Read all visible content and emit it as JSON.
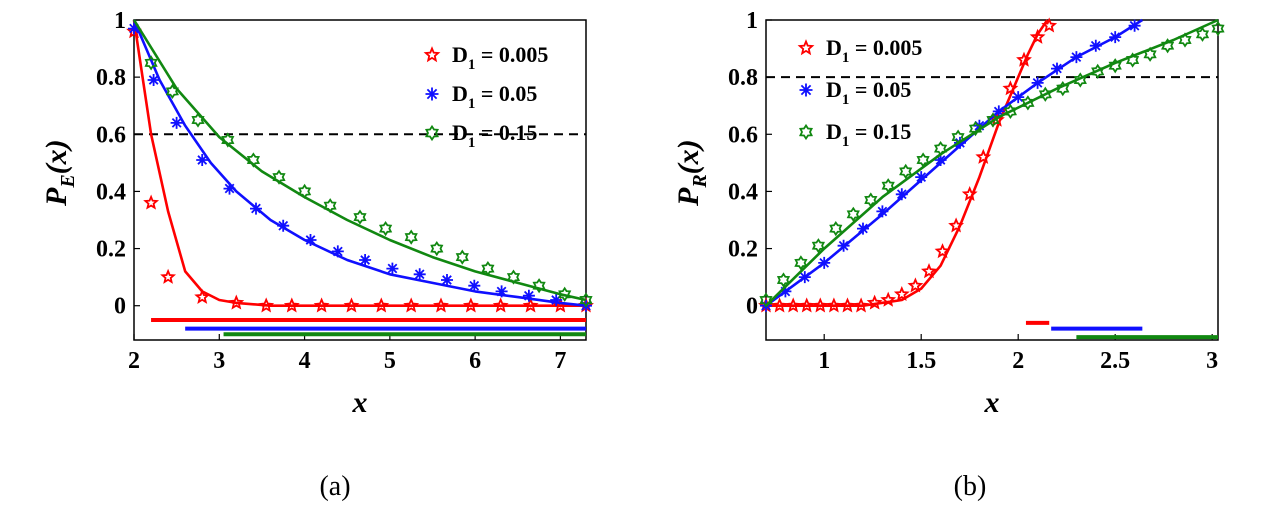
{
  "colors": {
    "red": "#ff0000",
    "blue": "#1010ff",
    "green": "#118811",
    "threshold": "#000000"
  },
  "panels": [
    {
      "caption": "(a)",
      "ylabel_main": "P",
      "ylabel_sub": "E",
      "ylabel_tail": "(x)",
      "xlabel": "x",
      "legend": [
        {
          "prefix": "D",
          "sub": "1",
          "value": " = 0.005",
          "color": "red",
          "marker": "pentagram"
        },
        {
          "prefix": "D",
          "sub": "1",
          "value": " = 0.05",
          "color": "blue",
          "marker": "asterisk"
        },
        {
          "prefix": "D",
          "sub": "1",
          "value": " = 0.15",
          "color": "green",
          "marker": "hexagram"
        }
      ]
    },
    {
      "caption": "(b)",
      "ylabel_main": "P",
      "ylabel_sub": "R",
      "ylabel_tail": "(x)",
      "xlabel": "x",
      "legend": [
        {
          "prefix": "D",
          "sub": "1",
          "value": " = 0.005",
          "color": "red",
          "marker": "pentagram"
        },
        {
          "prefix": "D",
          "sub": "1",
          "value": " = 0.05",
          "color": "blue",
          "marker": "asterisk"
        },
        {
          "prefix": "D",
          "sub": "1",
          "value": " = 0.15",
          "color": "green",
          "marker": "hexagram"
        }
      ]
    }
  ],
  "chart_data": [
    {
      "type": "line",
      "xlabel": "x",
      "ylabel": "P_E(x)",
      "xlim": [
        2,
        7.3
      ],
      "ylim": [
        -0.12,
        1
      ],
      "xticks": [
        "2",
        "3",
        "4",
        "5",
        "6",
        "7"
      ],
      "yticks": [
        "0",
        "0.2",
        "0.4",
        "0.6",
        "0.8",
        "1"
      ],
      "xtick_values": [
        2,
        3,
        4,
        5,
        6,
        7
      ],
      "ytick_values": [
        0,
        0.2,
        0.4,
        0.6,
        0.8,
        1
      ],
      "grid": false,
      "legend_position": "top-right",
      "threshold": 0.6,
      "series": [
        {
          "name": "D1 = 0.005",
          "color": "red",
          "marker": "pentagram",
          "x": [
            2.0,
            2.2,
            2.4,
            2.6,
            2.8,
            3.0,
            3.2,
            3.4,
            3.6,
            3.8,
            4.0,
            4.4,
            4.8,
            5.2,
            5.6,
            6.0,
            6.4,
            6.8,
            7.3
          ],
          "y": [
            1.0,
            0.6,
            0.33,
            0.12,
            0.05,
            0.02,
            0.01,
            0.005,
            0.0,
            0.0,
            0.0,
            0.0,
            0.0,
            0.0,
            0.0,
            0.0,
            0.0,
            0.0,
            0.0
          ],
          "points_x": [
            2.0,
            2.2,
            2.4,
            2.8,
            3.2,
            3.55,
            3.85,
            4.2,
            4.55,
            4.9,
            5.25,
            5.6,
            5.95,
            6.3,
            6.65,
            7.0,
            7.3
          ],
          "points_y": [
            0.96,
            0.36,
            0.1,
            0.03,
            0.01,
            0.0,
            0.0,
            0.0,
            0.0,
            0.0,
            0.0,
            0.0,
            0.0,
            0.0,
            0.0,
            0.0,
            0.0
          ],
          "bar": {
            "from": 2.2,
            "to": 7.3,
            "y": -0.05
          }
        },
        {
          "name": "D1 = 0.05",
          "color": "blue",
          "marker": "asterisk",
          "x": [
            2.0,
            2.3,
            2.6,
            2.9,
            3.2,
            3.6,
            4.0,
            4.5,
            5.0,
            5.5,
            6.0,
            6.5,
            7.0,
            7.3
          ],
          "y": [
            1.0,
            0.79,
            0.63,
            0.5,
            0.4,
            0.3,
            0.23,
            0.16,
            0.11,
            0.08,
            0.05,
            0.03,
            0.01,
            0.0
          ],
          "points_x": [
            2.0,
            2.23,
            2.5,
            2.8,
            3.12,
            3.43,
            3.75,
            4.07,
            4.39,
            4.71,
            5.03,
            5.35,
            5.67,
            5.99,
            6.31,
            6.63,
            6.95,
            7.3
          ],
          "points_y": [
            0.97,
            0.79,
            0.64,
            0.51,
            0.41,
            0.34,
            0.28,
            0.23,
            0.19,
            0.16,
            0.13,
            0.11,
            0.09,
            0.07,
            0.05,
            0.035,
            0.02,
            0.0
          ],
          "bar": {
            "from": 2.6,
            "to": 7.3,
            "y": -0.08
          }
        },
        {
          "name": "D1 = 0.15",
          "color": "green",
          "marker": "hexagram",
          "x": [
            2.0,
            2.5,
            3.0,
            3.5,
            4.0,
            4.5,
            5.0,
            5.5,
            6.0,
            6.5,
            7.0,
            7.3
          ],
          "y": [
            1.0,
            0.76,
            0.59,
            0.47,
            0.38,
            0.3,
            0.23,
            0.17,
            0.12,
            0.08,
            0.04,
            0.02
          ],
          "points_x": [
            2.2,
            2.45,
            2.75,
            3.1,
            3.4,
            3.7,
            4.0,
            4.3,
            4.65,
            4.95,
            5.25,
            5.55,
            5.85,
            6.15,
            6.45,
            6.75,
            7.05,
            7.3
          ],
          "points_y": [
            0.85,
            0.75,
            0.65,
            0.58,
            0.51,
            0.45,
            0.4,
            0.35,
            0.31,
            0.27,
            0.24,
            0.2,
            0.17,
            0.13,
            0.1,
            0.07,
            0.04,
            0.02
          ],
          "bar": {
            "from": 3.05,
            "to": 7.3,
            "y": -0.1
          }
        }
      ]
    },
    {
      "type": "line",
      "xlabel": "x",
      "ylabel": "P_R(x)",
      "xlim": [
        0.7,
        3.03
      ],
      "ylim": [
        -0.12,
        1
      ],
      "xticks": [
        "1",
        "1.5",
        "2",
        "2.5",
        "3"
      ],
      "yticks": [
        "0",
        "0.2",
        "0.4",
        "0.6",
        "0.8",
        "1"
      ],
      "xtick_values": [
        1,
        1.5,
        2,
        2.5,
        3
      ],
      "ytick_values": [
        0,
        0.2,
        0.4,
        0.6,
        0.8,
        1
      ],
      "grid": false,
      "legend_position": "top-left",
      "threshold": 0.8,
      "series": [
        {
          "name": "D1 = 0.005",
          "color": "red",
          "marker": "pentagram",
          "x": [
            0.7,
            1.2,
            1.4,
            1.5,
            1.6,
            1.7,
            1.8,
            1.9,
            2.0,
            2.05,
            2.1,
            2.15
          ],
          "y": [
            0.0,
            0.0,
            0.02,
            0.06,
            0.14,
            0.28,
            0.45,
            0.64,
            0.8,
            0.88,
            0.95,
            1.0
          ],
          "points_x": [
            0.7,
            0.77,
            0.84,
            0.91,
            0.98,
            1.05,
            1.12,
            1.19,
            1.26,
            1.33,
            1.4,
            1.47,
            1.54,
            1.61,
            1.68,
            1.75,
            1.82,
            1.89,
            1.96,
            2.03,
            2.1,
            2.16
          ],
          "points_y": [
            0.0,
            0.0,
            0.0,
            0.0,
            0.0,
            0.0,
            0.0,
            0.0,
            0.01,
            0.02,
            0.04,
            0.07,
            0.12,
            0.19,
            0.28,
            0.39,
            0.52,
            0.65,
            0.76,
            0.86,
            0.94,
            0.98
          ],
          "bar": {
            "from": 2.04,
            "to": 2.16,
            "y": -0.06
          }
        },
        {
          "name": "D1 = 0.05",
          "color": "blue",
          "marker": "asterisk",
          "x": [
            0.7,
            1.0,
            1.3,
            1.6,
            1.9,
            2.1,
            2.3,
            2.5,
            2.64
          ],
          "y": [
            0.0,
            0.15,
            0.32,
            0.5,
            0.68,
            0.78,
            0.87,
            0.94,
            1.0
          ],
          "points_x": [
            0.7,
            0.8,
            0.9,
            1.0,
            1.1,
            1.2,
            1.3,
            1.4,
            1.5,
            1.6,
            1.7,
            1.8,
            1.9,
            2.0,
            2.1,
            2.2,
            2.3,
            2.4,
            2.5,
            2.6
          ],
          "points_y": [
            0.0,
            0.05,
            0.1,
            0.15,
            0.21,
            0.27,
            0.33,
            0.39,
            0.45,
            0.51,
            0.57,
            0.63,
            0.68,
            0.73,
            0.78,
            0.83,
            0.87,
            0.91,
            0.94,
            0.98
          ],
          "bar": {
            "from": 2.17,
            "to": 2.64,
            "y": -0.08
          }
        },
        {
          "name": "D1 = 0.15",
          "color": "green",
          "marker": "hexagram",
          "x": [
            0.7,
            1.0,
            1.3,
            1.6,
            1.9,
            2.2,
            2.5,
            2.8,
            3.03
          ],
          "y": [
            0.0,
            0.2,
            0.38,
            0.53,
            0.66,
            0.76,
            0.85,
            0.93,
            1.0
          ],
          "points_x": [
            0.7,
            0.79,
            0.88,
            0.97,
            1.06,
            1.15,
            1.24,
            1.33,
            1.42,
            1.51,
            1.6,
            1.69,
            1.78,
            1.87,
            1.96,
            2.05,
            2.14,
            2.23,
            2.32,
            2.41,
            2.5,
            2.59,
            2.68,
            2.77,
            2.86,
            2.95,
            3.03
          ],
          "points_y": [
            0.02,
            0.09,
            0.15,
            0.21,
            0.27,
            0.32,
            0.37,
            0.42,
            0.47,
            0.51,
            0.55,
            0.59,
            0.62,
            0.65,
            0.68,
            0.71,
            0.74,
            0.76,
            0.79,
            0.82,
            0.84,
            0.86,
            0.88,
            0.91,
            0.93,
            0.95,
            0.97
          ],
          "bar": {
            "from": 2.3,
            "to": 3.03,
            "y": -0.11
          }
        }
      ]
    }
  ]
}
